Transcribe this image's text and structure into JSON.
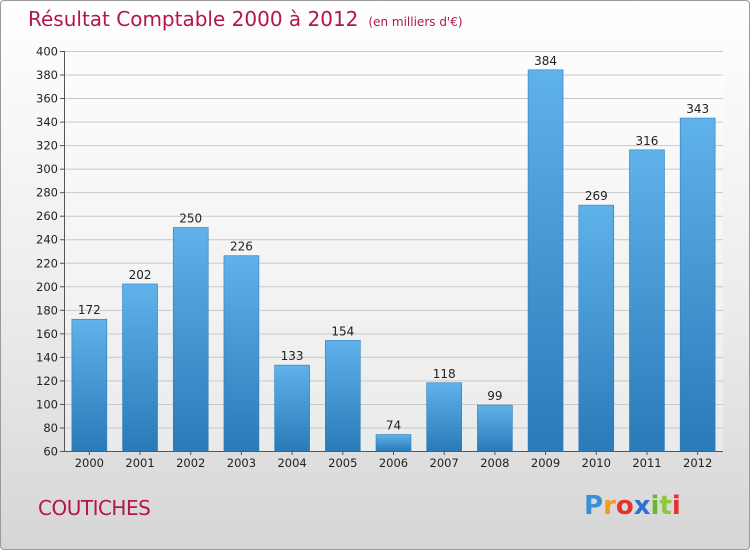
{
  "chart_data": {
    "type": "bar",
    "title": "Résultat Comptable 2000 à 2012",
    "subtitle": "(en milliers d'€)",
    "categories": [
      "2000",
      "2001",
      "2002",
      "2003",
      "2004",
      "2005",
      "2006",
      "2007",
      "2008",
      "2009",
      "2010",
      "2011",
      "2012"
    ],
    "values": [
      172,
      202,
      250,
      226,
      133,
      154,
      74,
      118,
      99,
      384,
      269,
      316,
      343
    ],
    "ylim": [
      60,
      400
    ],
    "yticks": [
      60,
      80,
      100,
      120,
      140,
      160,
      180,
      200,
      220,
      240,
      260,
      280,
      300,
      320,
      340,
      360,
      380,
      400
    ],
    "grid": true,
    "xlabel": "",
    "ylabel": ""
  },
  "city": "COUTICHES",
  "logo": {
    "letters": [
      "P",
      "r",
      "o",
      "x",
      "i",
      "t",
      "i"
    ],
    "colors": [
      "#3a8fd8",
      "#f39a1f",
      "#e6332a",
      "#2f6fd1",
      "#68b82e",
      "#8dc63f",
      "#e6332a"
    ]
  },
  "colors": {
    "accent": "#b3164a",
    "bar_top": "#5fb2ea",
    "bar_bottom": "#2a7ab8"
  }
}
